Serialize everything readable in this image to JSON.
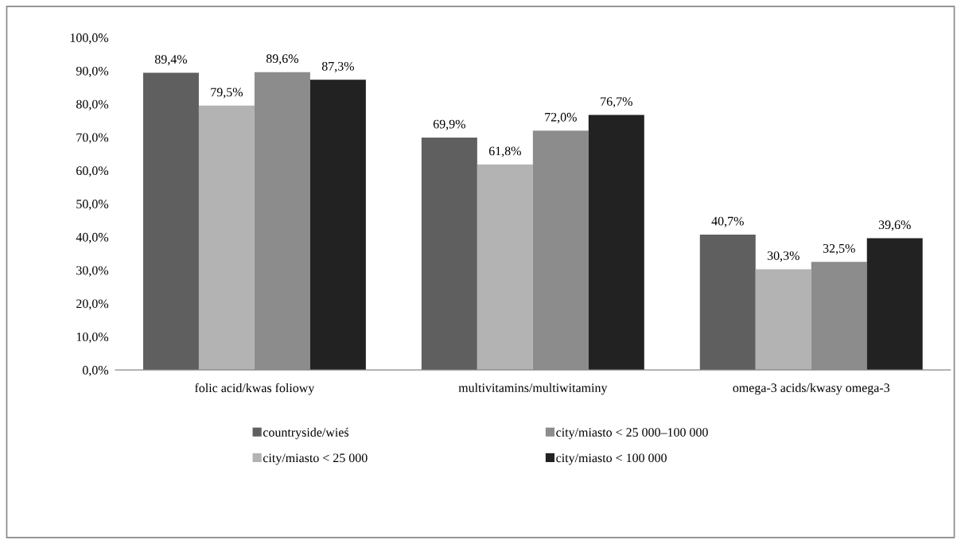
{
  "chart_data": {
    "type": "bar",
    "categories": [
      "folic acid/kwas foliowy",
      "multivitamins/multiwitaminy",
      "omega-3 acids/kwasy omega-3"
    ],
    "series": [
      {
        "name": "countryside/wieś",
        "color": "#5f5f5f",
        "values": [
          89.4,
          69.9,
          40.7
        ],
        "value_labels": [
          "89,4%",
          "69,9%",
          "40,7%"
        ]
      },
      {
        "name": "city/miasto < 25 000",
        "color": "#b3b3b3",
        "values": [
          79.5,
          61.8,
          30.3
        ],
        "value_labels": [
          "79,5%",
          "61,8%",
          "30,3%"
        ]
      },
      {
        "name": "city/miasto < 25 000–100 000",
        "color": "#8c8c8c",
        "values": [
          89.6,
          72.0,
          32.5
        ],
        "value_labels": [
          "89,6%",
          "72,0%",
          "32,5%"
        ]
      },
      {
        "name": "city/miasto < 100 000",
        "color": "#222222",
        "values": [
          87.3,
          76.7,
          39.6
        ],
        "value_labels": [
          "87,3%",
          "76,7%",
          "39,6%"
        ]
      }
    ],
    "ylim": [
      0,
      100
    ],
    "yticks": [
      {
        "value": 0,
        "label": "0,0%"
      },
      {
        "value": 10,
        "label": "10,0%"
      },
      {
        "value": 20,
        "label": "20,0%"
      },
      {
        "value": 30,
        "label": "30,0%"
      },
      {
        "value": 40,
        "label": "40,0%"
      },
      {
        "value": 50,
        "label": "50,0%"
      },
      {
        "value": 60,
        "label": "60,0%"
      },
      {
        "value": 70,
        "label": "70,0%"
      },
      {
        "value": 80,
        "label": "80,0%"
      },
      {
        "value": 90,
        "label": "90,0%"
      },
      {
        "value": 100,
        "label": "100,0%"
      }
    ],
    "grid": false,
    "legend": "bottom"
  }
}
